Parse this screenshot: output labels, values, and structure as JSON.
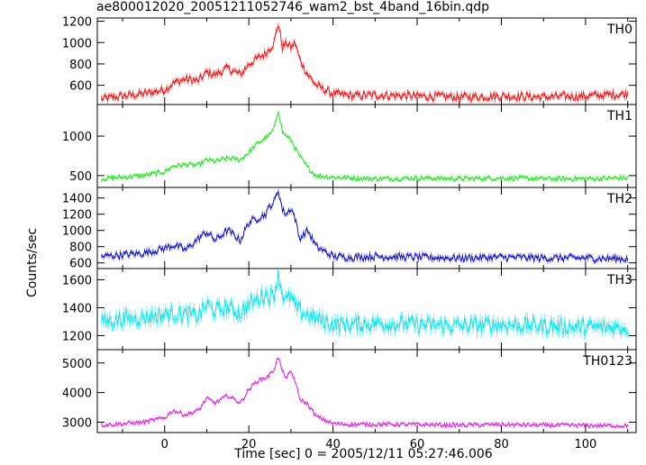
{
  "chart_data": {
    "type": "line",
    "title": "ae800012020_20051211052746_wam2_bst_4band_16bin.qdp",
    "xlabel": "Time [sec] 0 = 2005/12/11 05:27:46.006",
    "ylabel": "Counts/sec",
    "xlim": [
      -16,
      112
    ],
    "x_ticks": [
      0,
      20,
      40,
      60,
      80,
      100
    ],
    "grid": false,
    "panels": [
      {
        "name": "TH0",
        "color": "#ff0000",
        "ylim": [
          420,
          1230
        ],
        "y_ticks": [
          600,
          800,
          1000,
          1200
        ],
        "series": [
          {
            "x": [
              -15,
              -10,
              -5,
              0,
              2,
              5,
              8,
              10,
              12,
              15,
              18,
              20,
              22,
              24,
              25,
              26,
              27,
              28,
              29,
              30,
              31,
              32,
              34,
              36,
              40,
              45,
              50,
              60,
              70,
              80,
              90,
              100,
              110
            ],
            "y": [
              470,
              500,
              520,
              560,
              620,
              660,
              640,
              720,
              700,
              760,
              700,
              800,
              850,
              900,
              950,
              1000,
              1180,
              950,
              1000,
              950,
              1000,
              850,
              700,
              600,
              520,
              500,
              510,
              500,
              490,
              500,
              490,
              500,
              520
            ],
            "noise": 40
          }
        ]
      },
      {
        "name": "TH1",
        "color": "#00ee00",
        "ylim": [
          350,
          1400
        ],
        "y_ticks": [
          500,
          1000
        ],
        "series": [
          {
            "x": [
              -15,
              -10,
              -5,
              0,
              2,
              5,
              8,
              10,
              12,
              15,
              18,
              20,
              22,
              24,
              25,
              26,
              27,
              28,
              29,
              30,
              31,
              32,
              34,
              36,
              40,
              45,
              50,
              60,
              70,
              80,
              90,
              100,
              110
            ],
            "y": [
              460,
              480,
              500,
              550,
              620,
              640,
              630,
              700,
              680,
              720,
              700,
              800,
              900,
              980,
              1020,
              1100,
              1330,
              1050,
              1000,
              950,
              850,
              750,
              600,
              500,
              480,
              470,
              460,
              470,
              460,
              470,
              460,
              460,
              470
            ],
            "noise": 30
          }
        ]
      },
      {
        "name": "TH2",
        "color": "#0000dd",
        "ylim": [
          530,
          1530
        ],
        "y_ticks": [
          600,
          800,
          1000,
          1200,
          1400
        ],
        "series": [
          {
            "x": [
              -15,
              -10,
              -5,
              0,
              2,
              5,
              8,
              10,
              12,
              15,
              18,
              20,
              22,
              24,
              25,
              26,
              27,
              28,
              29,
              30,
              31,
              32,
              34,
              36,
              40,
              45,
              50,
              60,
              70,
              80,
              90,
              100,
              110
            ],
            "y": [
              680,
              700,
              720,
              780,
              820,
              760,
              900,
              980,
              880,
              1000,
              880,
              1100,
              1150,
              1200,
              1300,
              1350,
              1500,
              1250,
              1200,
              1280,
              1150,
              900,
              1000,
              800,
              680,
              670,
              680,
              670,
              660,
              670,
              660,
              660,
              650
            ],
            "noise": 45
          }
        ]
      },
      {
        "name": "TH3",
        "color": "#00e5ee",
        "ylim": [
          1100,
          1680
        ],
        "y_ticks": [
          1200,
          1400,
          1600
        ],
        "series": [
          {
            "x": [
              -15,
              -10,
              -5,
              0,
              2,
              5,
              8,
              10,
              12,
              15,
              18,
              20,
              22,
              24,
              25,
              26,
              27,
              28,
              29,
              30,
              31,
              32,
              34,
              36,
              40,
              45,
              50,
              60,
              70,
              80,
              90,
              100,
              110
            ],
            "y": [
              1300,
              1320,
              1330,
              1350,
              1360,
              1350,
              1340,
              1420,
              1380,
              1400,
              1360,
              1420,
              1460,
              1500,
              1480,
              1500,
              1640,
              1500,
              1450,
              1480,
              1400,
              1380,
              1350,
              1320,
              1280,
              1280,
              1290,
              1280,
              1270,
              1280,
              1270,
              1260,
              1260
            ],
            "noise": 60
          }
        ]
      },
      {
        "name": "TH0123",
        "color": "#ee00ee",
        "ylim": [
          2650,
          5450
        ],
        "y_ticks": [
          3000,
          4000,
          5000
        ],
        "series": [
          {
            "x": [
              -15,
              -10,
              -5,
              0,
              2,
              5,
              8,
              10,
              12,
              15,
              18,
              20,
              22,
              24,
              25,
              26,
              27,
              28,
              29,
              30,
              31,
              32,
              34,
              36,
              40,
              45,
              50,
              60,
              70,
              80,
              90,
              100,
              110
            ],
            "y": [
              2900,
              2950,
              3000,
              3150,
              3400,
              3250,
              3400,
              3800,
              3650,
              3900,
              3650,
              4100,
              4400,
              4500,
              4600,
              4800,
              5200,
              4700,
              4500,
              4700,
              4400,
              3800,
              3600,
              3200,
              2950,
              2920,
              2930,
              2920,
              2900,
              2920,
              2900,
              2890,
              2880
            ],
            "noise": 70
          }
        ]
      }
    ]
  }
}
